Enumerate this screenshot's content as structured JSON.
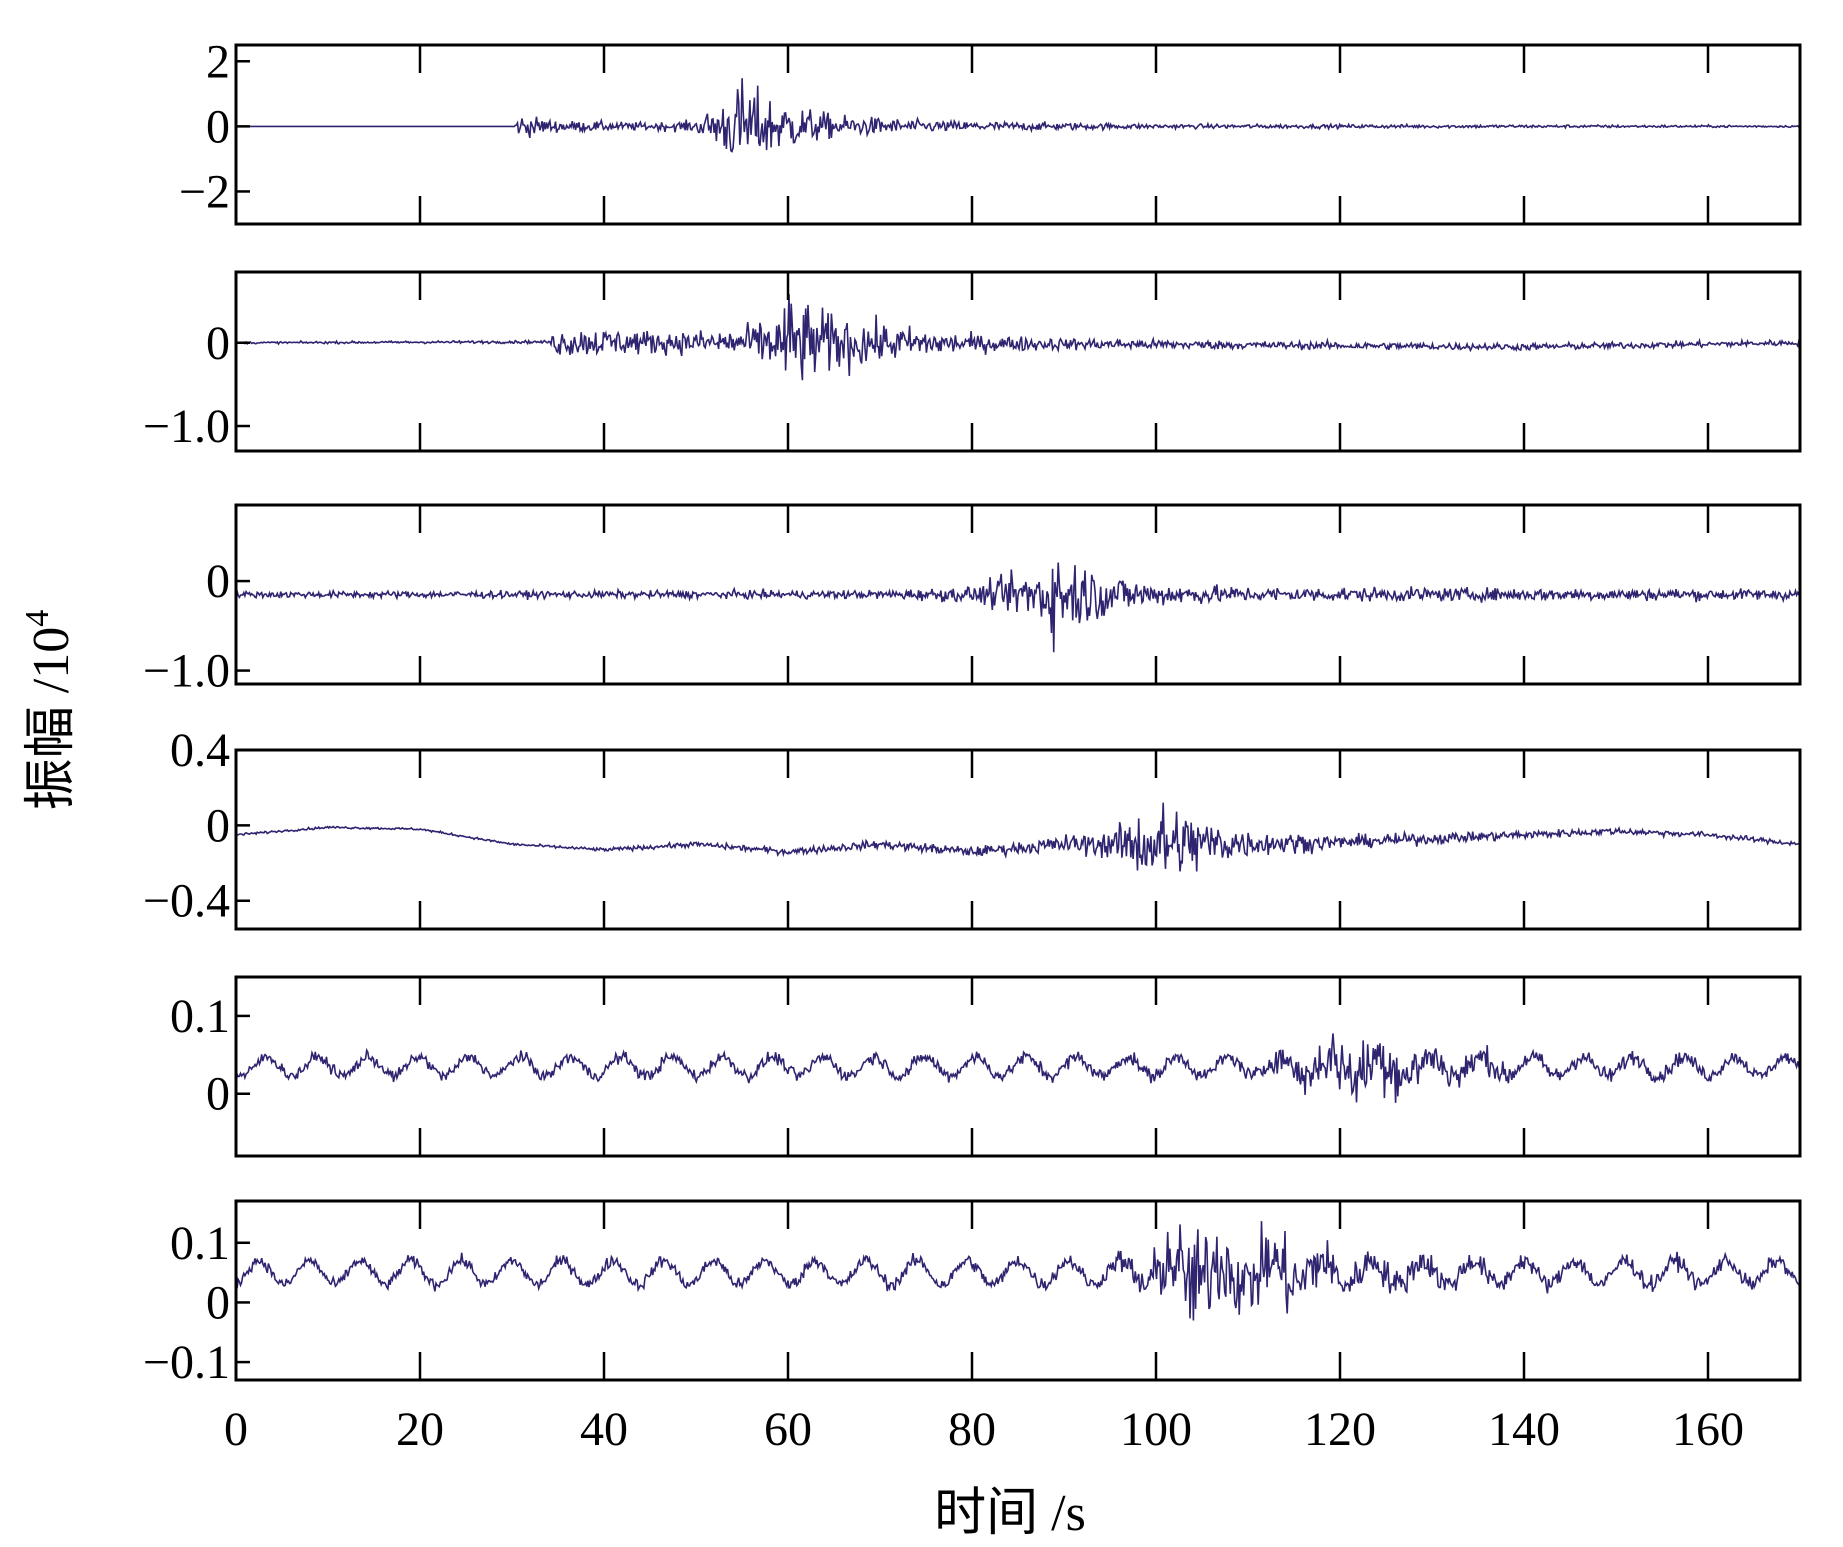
{
  "chart_data": {
    "type": "line",
    "xlabel": "时间 /s",
    "ylabel": "振幅 /10",
    "ylabel_exponent": "4",
    "xlim": [
      0,
      170
    ],
    "xticks": [
      0,
      20,
      40,
      60,
      80,
      100,
      120,
      140,
      160
    ],
    "xtick_labels": [
      "0",
      "20",
      "40",
      "60",
      "80",
      "100",
      "120",
      "140",
      "160"
    ],
    "grid": false,
    "line_color": "#2e2470",
    "panels": [
      {
        "ylim": [
          -3,
          2.5
        ],
        "yticks": [
          2,
          0,
          -2
        ],
        "ytick_labels": [
          "2",
          "0",
          "−2"
        ],
        "baseline": 0,
        "envelope": [
          [
            0,
            0.0
          ],
          [
            30,
            0.0
          ],
          [
            31,
            0.6
          ],
          [
            35,
            0.3
          ],
          [
            45,
            0.2
          ],
          [
            50,
            0.3
          ],
          [
            53,
            1.4
          ],
          [
            55,
            2.4
          ],
          [
            57,
            1.8
          ],
          [
            60,
            1.2
          ],
          [
            65,
            0.6
          ],
          [
            75,
            0.3
          ],
          [
            100,
            0.12
          ],
          [
            140,
            0.08
          ],
          [
            170,
            0.05
          ]
        ],
        "drift": []
      },
      {
        "ylim": [
          -1.3,
          0.85
        ],
        "yticks": [
          0,
          -1.0
        ],
        "ytick_labels": [
          "0",
          "−1.0"
        ],
        "baseline": 0,
        "envelope": [
          [
            0,
            0.02
          ],
          [
            34,
            0.03
          ],
          [
            35,
            0.3
          ],
          [
            40,
            0.28
          ],
          [
            48,
            0.22
          ],
          [
            55,
            0.3
          ],
          [
            59,
            0.6
          ],
          [
            60,
            1.05
          ],
          [
            63,
            0.7
          ],
          [
            70,
            0.4
          ],
          [
            80,
            0.18
          ],
          [
            90,
            0.12
          ],
          [
            110,
            0.08
          ],
          [
            170,
            0.06
          ]
        ],
        "drift": [
          [
            0,
            0
          ],
          [
            30,
            0.01
          ],
          [
            60,
            0
          ],
          [
            100,
            -0.02
          ],
          [
            140,
            -0.05
          ],
          [
            170,
            0
          ]
        ]
      },
      {
        "ylim": [
          -1.15,
          0.85
        ],
        "yticks": [
          0,
          -1.0
        ],
        "ytick_labels": [
          "0",
          "−1.0"
        ],
        "baseline": -0.15,
        "envelope": [
          [
            0,
            0.06
          ],
          [
            70,
            0.08
          ],
          [
            80,
            0.15
          ],
          [
            86,
            0.45
          ],
          [
            89,
            0.85
          ],
          [
            92,
            0.6
          ],
          [
            96,
            0.35
          ],
          [
            100,
            0.22
          ],
          [
            110,
            0.14
          ],
          [
            170,
            0.1
          ]
        ],
        "drift": [
          [
            0,
            0
          ],
          [
            170,
            0
          ]
        ]
      },
      {
        "ylim": [
          -0.55,
          0.4
        ],
        "yticks": [
          0.4,
          0,
          -0.4
        ],
        "ytick_labels": [
          "0.4",
          "0",
          "−0.4"
        ],
        "baseline": -0.05,
        "envelope": [
          [
            0,
            0.01
          ],
          [
            30,
            0.01
          ],
          [
            60,
            0.03
          ],
          [
            85,
            0.05
          ],
          [
            95,
            0.12
          ],
          [
            99,
            0.33
          ],
          [
            101,
            0.38
          ],
          [
            105,
            0.25
          ],
          [
            110,
            0.12
          ],
          [
            120,
            0.06
          ],
          [
            150,
            0.03
          ],
          [
            170,
            0.02
          ]
        ],
        "drift": [
          [
            0,
            0
          ],
          [
            10,
            0.04
          ],
          [
            20,
            0.03
          ],
          [
            30,
            -0.05
          ],
          [
            40,
            -0.08
          ],
          [
            50,
            -0.05
          ],
          [
            60,
            -0.09
          ],
          [
            70,
            -0.05
          ],
          [
            80,
            -0.09
          ],
          [
            90,
            -0.05
          ],
          [
            100,
            -0.05
          ],
          [
            120,
            -0.04
          ],
          [
            140,
            0.0
          ],
          [
            150,
            0.02
          ],
          [
            160,
            0.0
          ],
          [
            170,
            -0.05
          ]
        ]
      },
      {
        "ylim": [
          -0.08,
          0.15
        ],
        "yticks": [
          0.1,
          0
        ],
        "ytick_labels": [
          "0.1",
          "0"
        ],
        "baseline": 0.035,
        "envelope": [
          [
            0,
            0.012
          ],
          [
            110,
            0.015
          ],
          [
            118,
            0.05
          ],
          [
            120,
            0.07
          ],
          [
            123,
            0.065
          ],
          [
            125,
            0.075
          ],
          [
            130,
            0.04
          ],
          [
            140,
            0.02
          ],
          [
            170,
            0.012
          ]
        ],
        "wave_amp": 0.012,
        "wave_period": 5.5
      },
      {
        "ylim": [
          -0.13,
          0.17
        ],
        "yticks": [
          0.1,
          0,
          -0.1
        ],
        "ytick_labels": [
          "0.1",
          "0",
          "−0.1"
        ],
        "baseline": 0.05,
        "envelope": [
          [
            0,
            0.015
          ],
          [
            95,
            0.02
          ],
          [
            100,
            0.08
          ],
          [
            104,
            0.15
          ],
          [
            110,
            0.1
          ],
          [
            115,
            0.11
          ],
          [
            120,
            0.05
          ],
          [
            140,
            0.025
          ],
          [
            170,
            0.02
          ]
        ],
        "wave_amp": 0.02,
        "wave_period": 5.5
      }
    ]
  }
}
